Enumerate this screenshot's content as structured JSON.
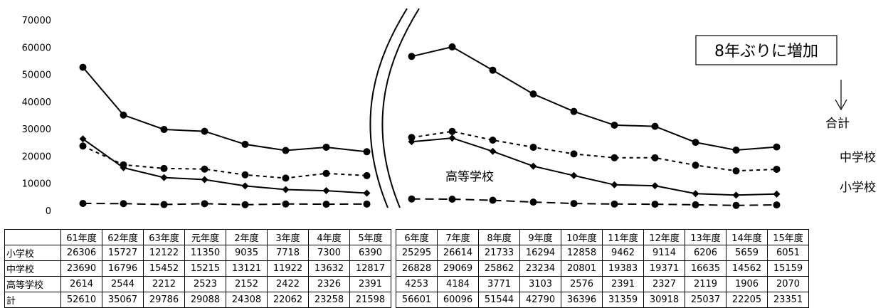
{
  "chart_data": {
    "type": "line",
    "categories": [
      "61年度",
      "62年度",
      "63年度",
      "元年度",
      "2年度",
      "3年度",
      "4年度",
      "5年度",
      "6年度",
      "7年度",
      "8年度",
      "9年度",
      "10年度",
      "11年度",
      "12年度",
      "13年度",
      "14年度",
      "15年度"
    ],
    "ylim": [
      0,
      70000
    ],
    "yticks": [
      0,
      10000,
      20000,
      30000,
      40000,
      50000,
      60000,
      70000
    ],
    "axis_break_after": "5年度",
    "series": [
      {
        "name": "小学校",
        "marker": "diamond",
        "line": "solid",
        "values": [
          26306,
          15727,
          12122,
          11350,
          9035,
          7718,
          7300,
          6390,
          25295,
          26614,
          21733,
          16294,
          12858,
          9462,
          9114,
          6206,
          5659,
          6051
        ]
      },
      {
        "name": "中学校",
        "marker": "circle",
        "line": "dotted",
        "values": [
          23690,
          16796,
          15452,
          15215,
          13121,
          11922,
          13632,
          12817,
          26828,
          29069,
          25862,
          23234,
          20801,
          19383,
          19371,
          16635,
          14562,
          15159
        ]
      },
      {
        "name": "高等学校",
        "marker": "circle",
        "line": "dashed",
        "values": [
          2614,
          2544,
          2212,
          2523,
          2152,
          2422,
          2326,
          2391,
          4253,
          4184,
          3771,
          3103,
          2576,
          2391,
          2327,
          2119,
          1906,
          2070
        ]
      },
      {
        "name": "計",
        "marker": "circle",
        "line": "solid",
        "values": [
          52610,
          35067,
          29786,
          29088,
          24308,
          22062,
          23258,
          21598,
          56601,
          60096,
          51544,
          42790,
          36396,
          31359,
          30918,
          25037,
          22205,
          23351
        ]
      }
    ],
    "series_labels": {
      "total": "合計",
      "junior": "中学校",
      "high": "高等学校",
      "elementary": "小学校"
    },
    "annotation": "8年ぶりに増加"
  }
}
